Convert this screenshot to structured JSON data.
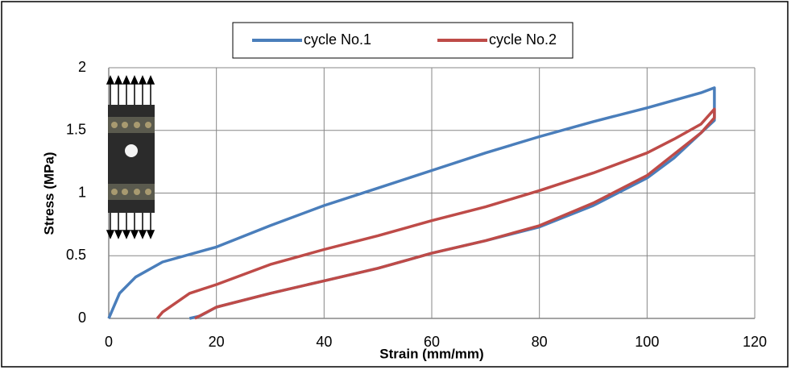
{
  "chart_data": {
    "type": "line",
    "xlabel": "Strain (mm/mm)",
    "ylabel": "Stress (MPa)",
    "xlim": [
      0,
      120
    ],
    "xticks": [
      0,
      20,
      40,
      60,
      80,
      100,
      120
    ],
    "ylim": [
      0,
      2
    ],
    "yticks": [
      0,
      0.5,
      1,
      1.5,
      2
    ],
    "grid": true,
    "legend": "top",
    "series": [
      {
        "name": "cycle No.1",
        "color": "#4a7ebb",
        "x": [
          0,
          2,
          5,
          10,
          20,
          30,
          40,
          50,
          60,
          70,
          80,
          90,
          100,
          110,
          112.5,
          112.5,
          105,
          100,
          90,
          80,
          70,
          60,
          50,
          40,
          30,
          20,
          17,
          15
        ],
        "values": [
          0,
          0.2,
          0.33,
          0.45,
          0.57,
          0.74,
          0.9,
          1.04,
          1.18,
          1.32,
          1.45,
          1.57,
          1.68,
          1.8,
          1.84,
          1.58,
          1.28,
          1.12,
          0.9,
          0.73,
          0.62,
          0.52,
          0.4,
          0.3,
          0.2,
          0.09,
          0.02,
          0
        ]
      },
      {
        "name": "cycle No.2",
        "color": "#be4b48",
        "x": [
          9,
          10,
          15,
          20,
          30,
          40,
          50,
          60,
          70,
          80,
          90,
          100,
          105,
          110,
          112.5,
          112.5,
          110,
          100,
          90,
          80,
          70,
          60,
          50,
          40,
          30,
          20,
          16
        ],
        "values": [
          0,
          0.05,
          0.2,
          0.27,
          0.43,
          0.55,
          0.66,
          0.78,
          0.89,
          1.02,
          1.16,
          1.32,
          1.43,
          1.55,
          1.67,
          1.6,
          1.48,
          1.14,
          0.92,
          0.74,
          0.62,
          0.52,
          0.4,
          0.3,
          0.2,
          0.09,
          0
        ]
      }
    ]
  }
}
